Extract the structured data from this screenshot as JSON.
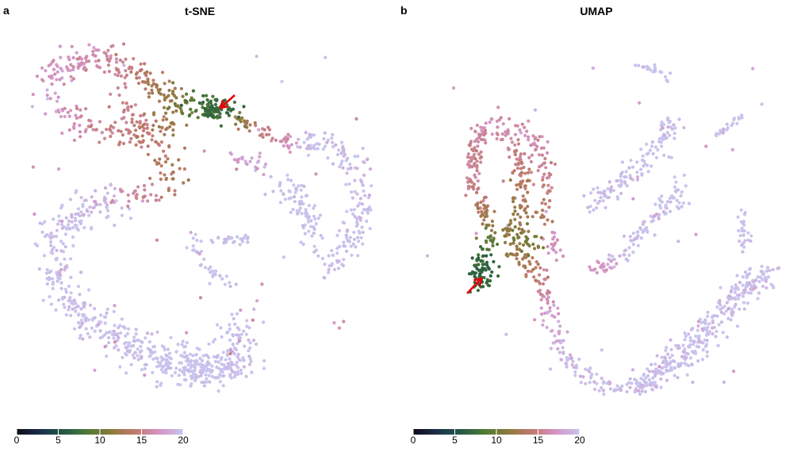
{
  "chart_data": [
    {
      "type": "scatter",
      "panel_label": "a",
      "title": "t-SNE",
      "colorbar": {
        "min": 0,
        "max": 20,
        "ticks": [
          0,
          5,
          10,
          15,
          20
        ]
      },
      "annotation": {
        "kind": "arrow",
        "color": "#e8000b"
      }
    },
    {
      "type": "scatter",
      "panel_label": "b",
      "title": "UMAP",
      "colorbar": {
        "min": 0,
        "max": 20,
        "ticks": [
          0,
          5,
          10,
          15,
          20
        ]
      },
      "annotation": {
        "kind": "arrow",
        "color": "#e8000b"
      }
    }
  ],
  "colormap": {
    "name": "cubehelix-like",
    "stops": [
      "#0d0c1a",
      "#1b2f4a",
      "#245a46",
      "#4f7a34",
      "#8f7a3e",
      "#c27a6e",
      "#d594c4",
      "#c9c4ee"
    ]
  }
}
